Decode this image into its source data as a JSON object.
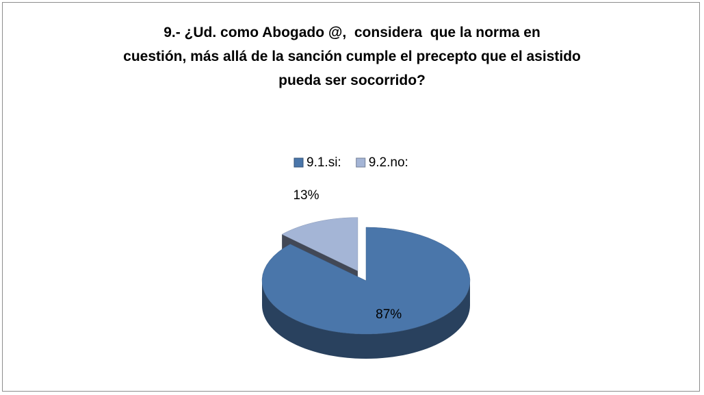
{
  "chart_data": {
    "type": "pie",
    "title": "9.- ¿Ud. como Abogado @,  considera  que la norma en\ncuestión, más allá de la sanción cumple el precepto que el asistido\npueda ser socorrido?",
    "categories": [
      "9.1.si:",
      "9.2.no:"
    ],
    "values": [
      87,
      13
    ],
    "value_labels": [
      "87%",
      "13%"
    ],
    "colors": [
      "#4a76aa",
      "#a4b5d6"
    ],
    "legend": "top",
    "exploded": [
      false,
      true
    ]
  }
}
